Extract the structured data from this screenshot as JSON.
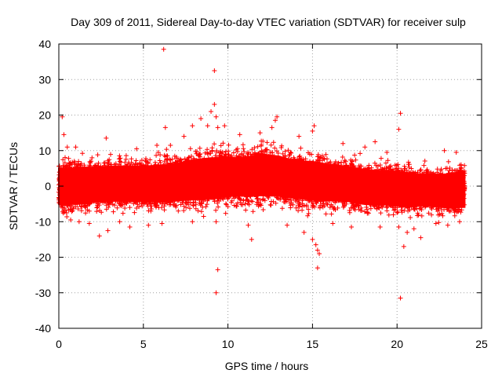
{
  "chart_data": {
    "type": "scatter",
    "title": "Day 309 of 2011, Sidereal Day-to-day VTEC variation (SDTVAR) for receiver sulp",
    "xlabel": "GPS time / hours",
    "ylabel": "SDTVAR / TECUs",
    "xlim": [
      0,
      25
    ],
    "ylim": [
      -40,
      40
    ],
    "xticks": [
      0,
      5,
      10,
      15,
      20,
      25
    ],
    "yticks": [
      -40,
      -30,
      -20,
      -10,
      0,
      10,
      20,
      30,
      40
    ],
    "grid": true,
    "marker": "+",
    "color": "#ff0000",
    "x_data_range": [
      0,
      24
    ],
    "band": {
      "x": [
        0,
        1,
        2,
        3,
        4,
        5,
        6,
        7,
        8,
        9,
        10,
        11,
        12,
        13,
        14,
        15,
        16,
        17,
        18,
        19,
        20,
        21,
        22,
        23,
        24
      ],
      "center": [
        0.0,
        0.0,
        0.5,
        0.5,
        0.5,
        0.5,
        0.5,
        1.0,
        2.0,
        2.5,
        3.0,
        3.0,
        3.5,
        3.0,
        2.0,
        1.5,
        1.0,
        0.5,
        0.0,
        0.0,
        -0.5,
        -0.5,
        -1.0,
        -1.0,
        -0.5
      ],
      "upper": [
        7,
        7,
        7,
        7.5,
        7.5,
        7.5,
        8,
        8.5,
        9.5,
        10,
        10,
        10,
        11,
        10.5,
        9,
        9,
        8,
        7.5,
        6.5,
        6,
        6,
        5,
        5,
        5,
        6
      ],
      "lower": [
        -7,
        -7,
        -6.5,
        -6,
        -6,
        -6,
        -6,
        -6,
        -6,
        -6,
        -5,
        -5,
        -5,
        -5,
        -5.5,
        -6,
        -6,
        -6,
        -7,
        -7,
        -7.5,
        -7.5,
        -7.5,
        -8,
        -8
      ]
    },
    "outliers": [
      {
        "x": 0.2,
        "y": 19.5
      },
      {
        "x": 0.3,
        "y": 14.5
      },
      {
        "x": 0.5,
        "y": 11.0
      },
      {
        "x": 0.7,
        "y": -9.5
      },
      {
        "x": 1.0,
        "y": 11.0
      },
      {
        "x": 1.2,
        "y": -10.0
      },
      {
        "x": 1.8,
        "y": -10.5
      },
      {
        "x": 2.4,
        "y": -14.0
      },
      {
        "x": 2.8,
        "y": 13.5
      },
      {
        "x": 2.9,
        "y": -12.5
      },
      {
        "x": 3.6,
        "y": -10.0
      },
      {
        "x": 4.2,
        "y": -11.5
      },
      {
        "x": 4.6,
        "y": 10.5
      },
      {
        "x": 5.3,
        "y": -11.0
      },
      {
        "x": 5.8,
        "y": 11.5
      },
      {
        "x": 6.2,
        "y": 38.5
      },
      {
        "x": 6.3,
        "y": 16.5
      },
      {
        "x": 6.1,
        "y": -10.5
      },
      {
        "x": 6.6,
        "y": 11.5
      },
      {
        "x": 7.4,
        "y": 14.0
      },
      {
        "x": 7.9,
        "y": 17.0
      },
      {
        "x": 7.9,
        "y": -10.0
      },
      {
        "x": 8.4,
        "y": 19.0
      },
      {
        "x": 8.8,
        "y": 17.0
      },
      {
        "x": 9.0,
        "y": 21.0
      },
      {
        "x": 9.2,
        "y": 23.0
      },
      {
        "x": 9.2,
        "y": 32.5
      },
      {
        "x": 9.3,
        "y": 19.5
      },
      {
        "x": 9.4,
        "y": 16.5
      },
      {
        "x": 9.3,
        "y": -10.0
      },
      {
        "x": 9.4,
        "y": -23.5
      },
      {
        "x": 9.3,
        "y": -30.0
      },
      {
        "x": 9.8,
        "y": 17.0
      },
      {
        "x": 10.7,
        "y": 14.5
      },
      {
        "x": 11.2,
        "y": -11.0
      },
      {
        "x": 11.4,
        "y": -15.0
      },
      {
        "x": 11.9,
        "y": 15.0
      },
      {
        "x": 12.6,
        "y": 16.5
      },
      {
        "x": 12.9,
        "y": 19.5
      },
      {
        "x": 12.8,
        "y": 18.5
      },
      {
        "x": 13.5,
        "y": -11.0
      },
      {
        "x": 14.2,
        "y": 14.0
      },
      {
        "x": 14.5,
        "y": -13.0
      },
      {
        "x": 15.0,
        "y": 15.5
      },
      {
        "x": 15.1,
        "y": 17.0
      },
      {
        "x": 15.0,
        "y": -15.0
      },
      {
        "x": 15.2,
        "y": -16.5
      },
      {
        "x": 15.3,
        "y": -18.0
      },
      {
        "x": 15.4,
        "y": -19.0
      },
      {
        "x": 15.3,
        "y": -23.0
      },
      {
        "x": 16.2,
        "y": -10.5
      },
      {
        "x": 16.8,
        "y": 12.0
      },
      {
        "x": 17.3,
        "y": -11.5
      },
      {
        "x": 18.1,
        "y": 11.0
      },
      {
        "x": 18.7,
        "y": 12.5
      },
      {
        "x": 19.0,
        "y": -11.5
      },
      {
        "x": 19.4,
        "y": 9.5
      },
      {
        "x": 20.2,
        "y": 20.5
      },
      {
        "x": 20.1,
        "y": 16.0
      },
      {
        "x": 20.1,
        "y": -11.5
      },
      {
        "x": 20.2,
        "y": -31.5
      },
      {
        "x": 20.4,
        "y": -17.0
      },
      {
        "x": 20.6,
        "y": -13.0
      },
      {
        "x": 21.0,
        "y": -12.0
      },
      {
        "x": 21.4,
        "y": -14.5
      },
      {
        "x": 22.3,
        "y": -10.5
      },
      {
        "x": 22.8,
        "y": 10.0
      },
      {
        "x": 23.0,
        "y": -11.0
      },
      {
        "x": 23.5,
        "y": 9.5
      },
      {
        "x": 23.7,
        "y": -10.0
      }
    ]
  }
}
